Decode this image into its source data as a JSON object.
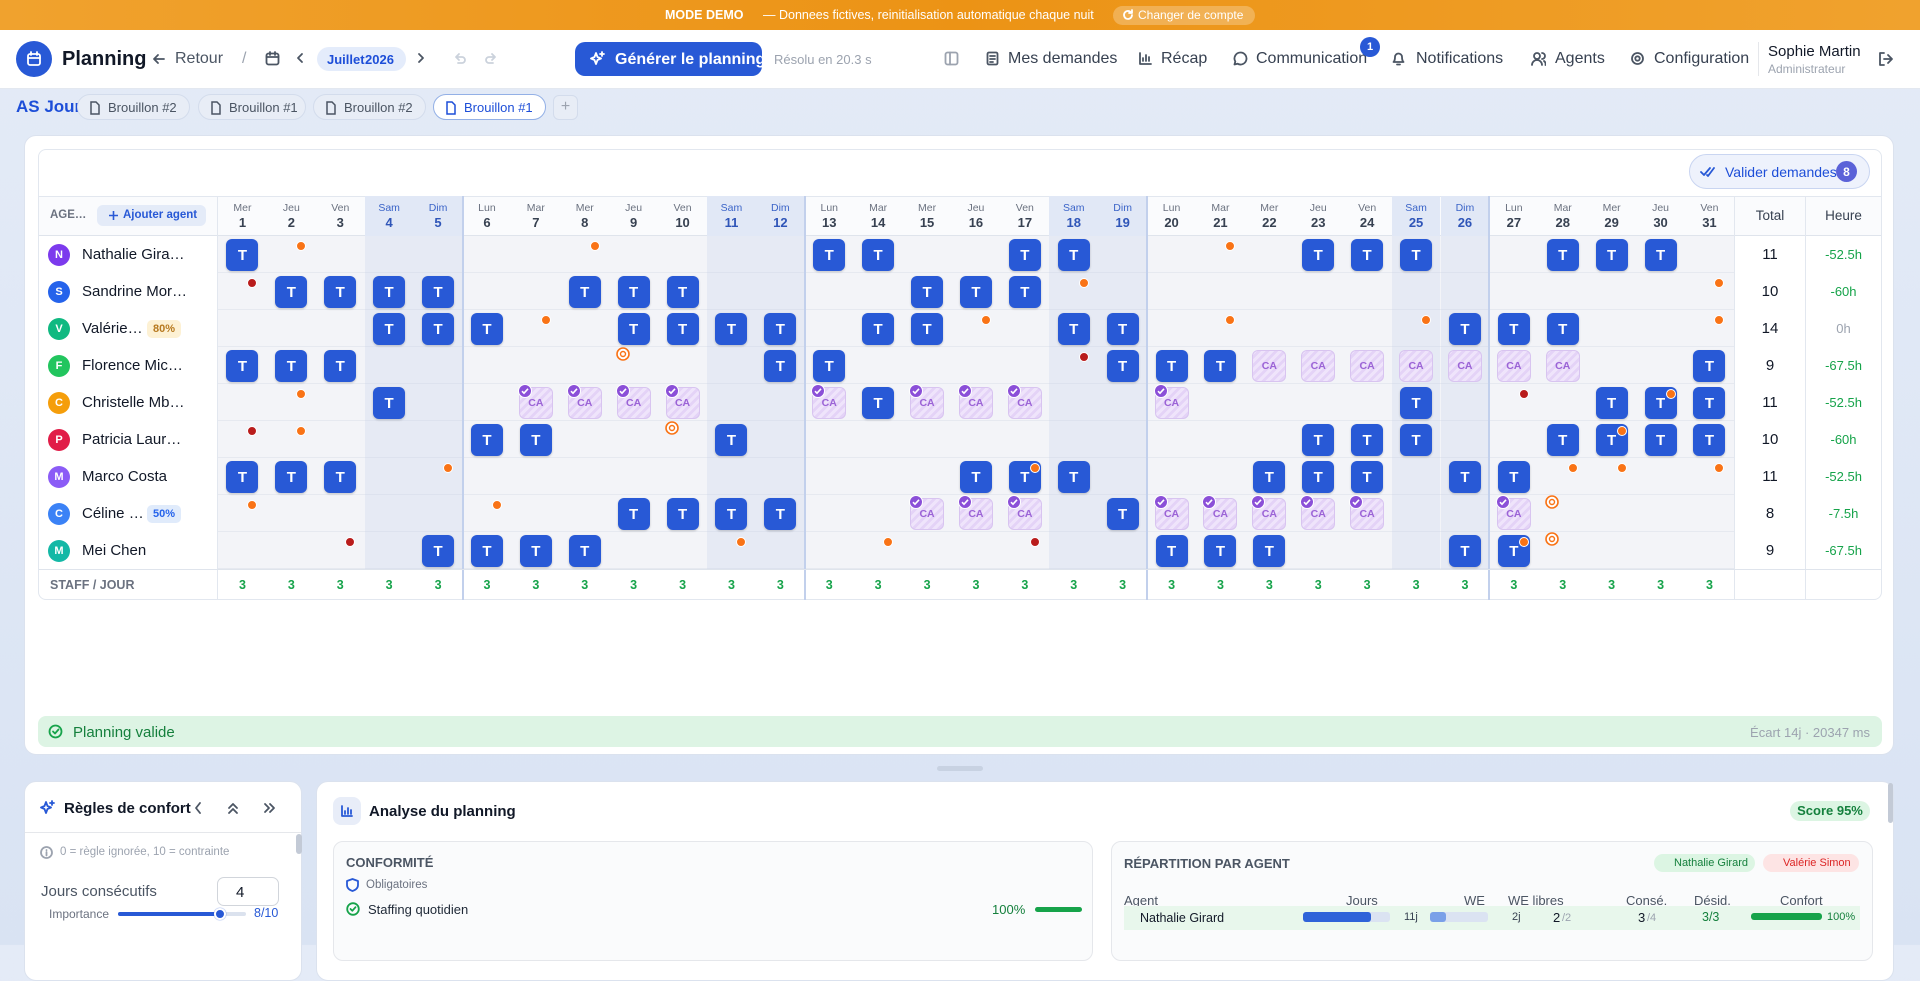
{
  "banner": {
    "mode": "MODE DEMO",
    "text": "— Donnees fictives, reinitialisation automatique chaque nuit",
    "button": "Changer de compte"
  },
  "header": {
    "title": "Planning",
    "back": "Retour",
    "separator": "/",
    "month": "Juillet",
    "year": "2026",
    "generate": "Générer le planning",
    "solved": "Résolu en 20.3 s",
    "nav": [
      "Mes demandes",
      "Récap",
      "Communication",
      "Notifications",
      "Agents",
      "Configuration"
    ],
    "badge": 1,
    "user": "Sophie Martin",
    "role": "Administrateur"
  },
  "tabs": {
    "team": "AS Jour",
    "items": [
      "Brouillon #2",
      "Brouillon #1",
      "Brouillon #2",
      "Brouillon #1"
    ],
    "active": 3,
    "add": "+"
  },
  "grid": {
    "validate": "Valider demandes",
    "validate_count": 8,
    "agent_header": "AGE…",
    "add_agent": "Ajouter agent",
    "total_header": "Total",
    "hours_header": "Heure",
    "shift_label": "T",
    "leave_label": "CA",
    "staff_label": "STAFF / JOUR",
    "weekdays": [
      "Mer",
      "Jeu",
      "Ven",
      "Sam",
      "Dim",
      "Lun",
      "Mar",
      "Mer",
      "Jeu",
      "Ven",
      "Sam",
      "Dim",
      "Lun",
      "Mar",
      "Mer",
      "Jeu",
      "Ven",
      "Sam",
      "Dim",
      "Lun",
      "Mar",
      "Mer",
      "Jeu",
      "Ven",
      "Sam",
      "Dim",
      "Lun",
      "Mar",
      "Mer",
      "Jeu",
      "Ven"
    ],
    "days": [
      1,
      2,
      3,
      4,
      5,
      6,
      7,
      8,
      9,
      10,
      11,
      12,
      13,
      14,
      15,
      16,
      17,
      18,
      19,
      20,
      21,
      22,
      23,
      24,
      25,
      26,
      27,
      28,
      29,
      30,
      31
    ],
    "weekend": [
      4,
      5,
      11,
      12,
      18,
      19,
      25,
      26
    ],
    "staff": [
      3,
      3,
      3,
      3,
      3,
      3,
      3,
      3,
      3,
      3,
      3,
      3,
      3,
      3,
      3,
      3,
      3,
      3,
      3,
      3,
      3,
      3,
      3,
      3,
      3,
      3,
      3,
      3,
      3,
      3,
      3
    ],
    "agents": [
      {
        "initial": "N",
        "name": "Nathalie Gira…",
        "color": "#7c3aed",
        "shifts": [
          1,
          13,
          14,
          17,
          18,
          23,
          24,
          25,
          28,
          29,
          30
        ],
        "orange_dots": [
          2,
          8,
          21
        ],
        "total": 11,
        "hours": "-52.5h",
        "hours_color": "#16a34a"
      },
      {
        "initial": "S",
        "name": "Sandrine Mor…",
        "color": "#2563eb",
        "shifts": [
          2,
          3,
          4,
          5,
          8,
          9,
          10,
          15,
          16,
          17
        ],
        "orange_dots": [
          18,
          31
        ],
        "red_dots": [
          1
        ],
        "total": 10,
        "hours": "-60h",
        "hours_color": "#16a34a"
      },
      {
        "initial": "V",
        "name": "Valérie…",
        "badge": "80%",
        "color": "#10b981",
        "shifts": [
          4,
          5,
          6,
          9,
          10,
          11,
          12,
          14,
          15,
          18,
          19,
          26,
          27,
          28
        ],
        "orange_dots": [
          7,
          16,
          21,
          25,
          31
        ],
        "total": 14,
        "hours": "0h",
        "hours_color": "#9ca3af"
      },
      {
        "initial": "F",
        "name": "Florence Mic…",
        "color": "#22c55e",
        "shifts": [
          1,
          2,
          3,
          12,
          13,
          19,
          20,
          21,
          31
        ],
        "leave": [
          22,
          23,
          24,
          25,
          26,
          27,
          28
        ],
        "red_dots": [
          18
        ],
        "targets": [
          9
        ],
        "total": 9,
        "hours": "-67.5h",
        "hours_color": "#16a34a"
      },
      {
        "initial": "C",
        "name": "Christelle Mb…",
        "color": "#f59e0b",
        "shifts": [
          4,
          14,
          25,
          29,
          30,
          31
        ],
        "leave": [
          7,
          8,
          9,
          10,
          13,
          15,
          16,
          17,
          20
        ],
        "checked": [
          7,
          8,
          9,
          10,
          13,
          15,
          16,
          17,
          20
        ],
        "orange_dots": [
          2,
          30
        ],
        "red_dots": [
          27
        ],
        "total": 11,
        "hours": "-52.5h",
        "hours_color": "#16a34a"
      },
      {
        "initial": "P",
        "name": "Patricia Laur…",
        "color": "#e11d48",
        "shifts": [
          6,
          7,
          11,
          23,
          24,
          25,
          28,
          29,
          30,
          31
        ],
        "orange_dots": [
          2,
          29
        ],
        "red_dots": [
          1
        ],
        "targets": [
          10
        ],
        "total": 10,
        "hours": "-60h",
        "hours_color": "#16a34a"
      },
      {
        "initial": "M",
        "name": "Marco Costa",
        "color": "#8b5cf6",
        "shifts": [
          1,
          2,
          3,
          16,
          17,
          18,
          22,
          23,
          24,
          26,
          27
        ],
        "orange_dots": [
          5,
          17,
          28,
          29,
          31
        ],
        "total": 11,
        "hours": "-52.5h",
        "hours_color": "#16a34a"
      },
      {
        "initial": "C",
        "name": "Céline …",
        "badge": "50%",
        "color": "#3b82f6",
        "shifts": [
          9,
          10,
          11,
          12,
          19
        ],
        "leave": [
          15,
          16,
          17,
          20,
          21,
          22,
          23,
          24,
          27
        ],
        "checked": [
          15,
          16,
          17,
          20,
          21,
          22,
          23,
          24,
          27
        ],
        "orange_dots": [
          1,
          6
        ],
        "targets": [
          28
        ],
        "total": 8,
        "hours": "-7.5h",
        "hours_color": "#16a34a"
      },
      {
        "initial": "M",
        "name": "Mei Chen",
        "color": "#14b8a6",
        "shifts": [
          5,
          6,
          7,
          8,
          20,
          21,
          22,
          26,
          27
        ],
        "orange_dots": [
          11,
          14,
          27
        ],
        "red_dots": [
          3,
          17
        ],
        "targets": [
          28
        ],
        "total": 9,
        "hours": "-67.5h",
        "hours_color": "#16a34a"
      }
    ]
  },
  "status": {
    "text": "Planning valide",
    "detail": "Écart 14j · 20347 ms"
  },
  "rules": {
    "title": "Règles de confort",
    "hint": "0 = règle ignorée, 10 = contrainte",
    "rule": "Jours consécutifs",
    "value": 4,
    "importance_label": "Importance",
    "importance": 8,
    "importance_max": 10,
    "importance_text": "8/10"
  },
  "analysis": {
    "title": "Analyse du planning",
    "score": "Score 95%",
    "compliance": "CONFORMITÉ",
    "mandatory": "Obligatoires",
    "check": "Staffing quotidien",
    "check_value": {
      "value": 100,
      "label": "100%"
    },
    "distribution": {
      "title": "RÉPARTITION PAR AGENT",
      "best": "Nathalie Girard",
      "worst": "Valérie Simon",
      "columns": [
        "Agent",
        "Jours",
        "WE",
        "WE libres",
        "Consé.",
        "Désid.",
        "Confort"
      ],
      "row": {
        "name": "Nathalie Girard",
        "days": "11j",
        "we": "2j",
        "we_free": "2",
        "we_free_of": "/2",
        "consec": "3",
        "consec_of": "/4",
        "desired": "3/3",
        "comfort": "100%"
      }
    }
  }
}
